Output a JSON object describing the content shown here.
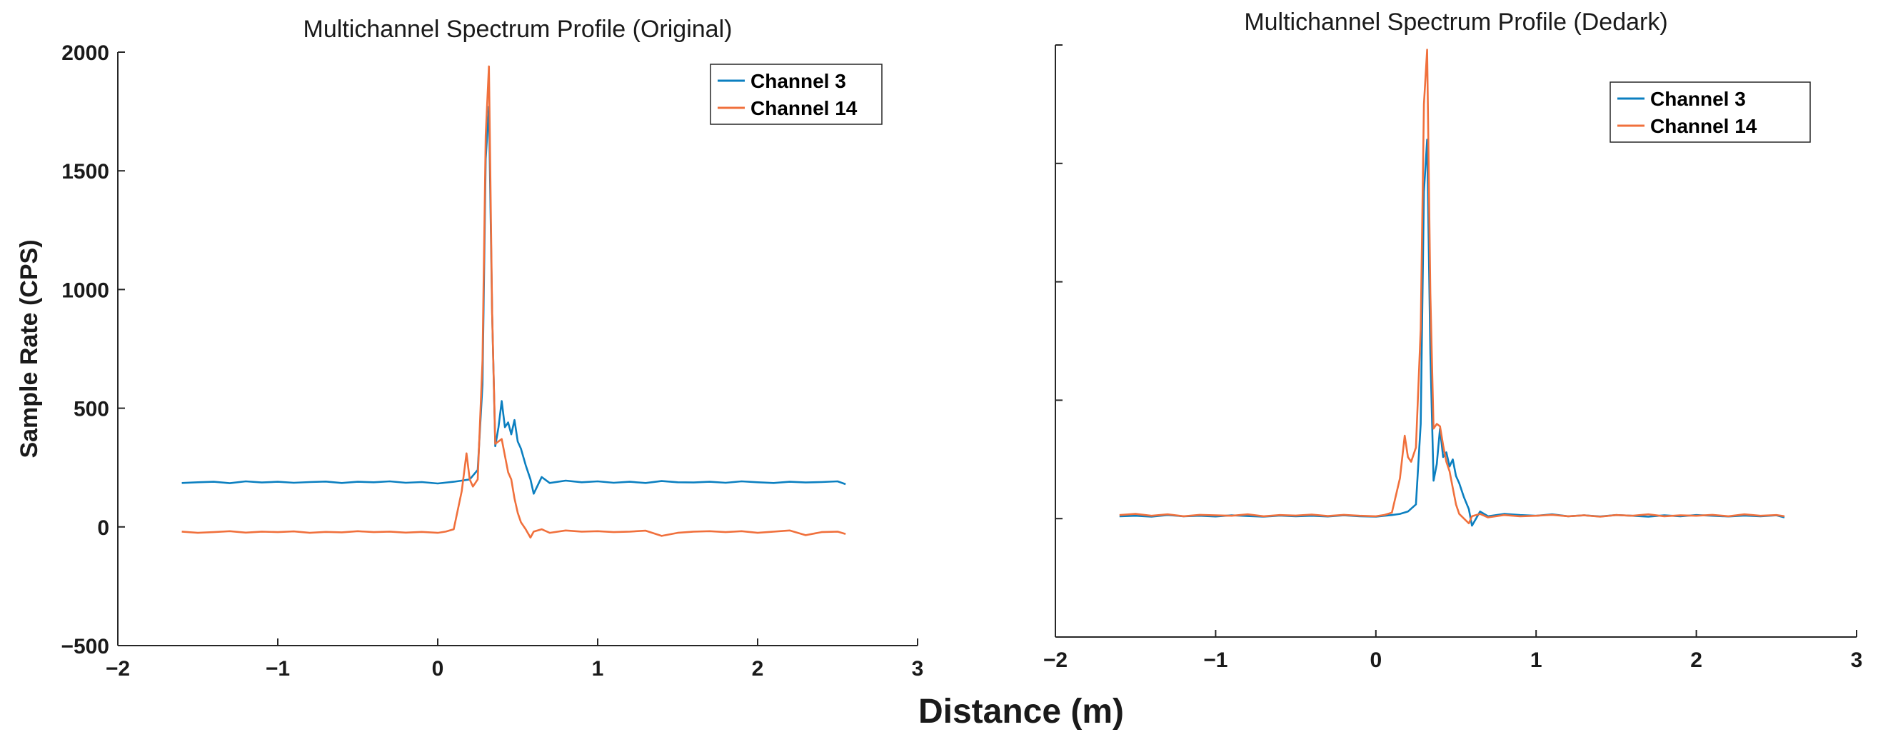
{
  "colors": {
    "ch3": "#0b7fc0",
    "ch14": "#f0703c"
  },
  "shared_xlabel": "Distance (m)",
  "chart_data": [
    {
      "type": "line",
      "title": "Multichannel Spectrum Profile (Original)",
      "xlabel": "",
      "ylabel": "Sample Rate (CPS)",
      "xlim": [
        -2,
        3
      ],
      "ylim": [
        -500,
        2000
      ],
      "x_ticks": [
        -2,
        -1,
        0,
        1,
        2,
        3
      ],
      "x_tick_labels": [
        "−2",
        "−1",
        "0",
        "1",
        "2",
        "3"
      ],
      "y_ticks": [
        -500,
        0,
        500,
        1000,
        1500,
        2000
      ],
      "y_tick_labels": [
        "−500",
        "0",
        "500",
        "1000",
        "1500",
        "2000"
      ],
      "legend": {
        "position": "top-right",
        "boxed": true
      },
      "series": [
        {
          "name": "Channel 3",
          "color_key": "ch3",
          "x": [
            -1.6,
            -1.5,
            -1.4,
            -1.3,
            -1.2,
            -1.1,
            -1.0,
            -0.9,
            -0.8,
            -0.7,
            -0.6,
            -0.5,
            -0.4,
            -0.3,
            -0.2,
            -0.1,
            0.0,
            0.1,
            0.15,
            0.2,
            0.25,
            0.28,
            0.3,
            0.32,
            0.34,
            0.36,
            0.38,
            0.4,
            0.42,
            0.44,
            0.46,
            0.48,
            0.5,
            0.52,
            0.55,
            0.58,
            0.6,
            0.65,
            0.7,
            0.8,
            0.9,
            1.0,
            1.1,
            1.2,
            1.3,
            1.4,
            1.5,
            1.6,
            1.7,
            1.8,
            1.9,
            2.0,
            2.1,
            2.2,
            2.3,
            2.4,
            2.5,
            2.55
          ],
          "y": [
            185,
            188,
            190,
            184,
            192,
            187,
            190,
            186,
            189,
            191,
            185,
            190,
            188,
            192,
            186,
            189,
            183,
            190,
            195,
            200,
            240,
            600,
            1550,
            1770,
            900,
            340,
            420,
            530,
            420,
            440,
            390,
            450,
            360,
            330,
            260,
            200,
            140,
            210,
            185,
            195,
            188,
            192,
            186,
            190,
            185,
            193,
            188,
            187,
            190,
            186,
            192,
            188,
            185,
            190,
            187,
            189,
            192,
            180
          ]
        },
        {
          "name": "Channel 14",
          "color_key": "ch14",
          "x": [
            -1.6,
            -1.5,
            -1.4,
            -1.3,
            -1.2,
            -1.1,
            -1.0,
            -0.9,
            -0.8,
            -0.7,
            -0.6,
            -0.5,
            -0.4,
            -0.3,
            -0.2,
            -0.1,
            0.0,
            0.05,
            0.1,
            0.15,
            0.18,
            0.2,
            0.22,
            0.25,
            0.28,
            0.3,
            0.32,
            0.34,
            0.36,
            0.38,
            0.4,
            0.42,
            0.44,
            0.46,
            0.48,
            0.5,
            0.52,
            0.55,
            0.58,
            0.6,
            0.65,
            0.7,
            0.8,
            0.9,
            1.0,
            1.1,
            1.2,
            1.3,
            1.4,
            1.5,
            1.6,
            1.7,
            1.8,
            1.9,
            2.0,
            2.1,
            2.2,
            2.3,
            2.4,
            2.5,
            2.55
          ],
          "y": [
            -20,
            -25,
            -22,
            -18,
            -24,
            -20,
            -22,
            -19,
            -25,
            -21,
            -23,
            -18,
            -22,
            -20,
            -24,
            -21,
            -25,
            -20,
            -10,
            150,
            310,
            200,
            170,
            200,
            700,
            1650,
            1940,
            900,
            350,
            360,
            370,
            300,
            230,
            200,
            120,
            60,
            20,
            -10,
            -45,
            -20,
            -10,
            -25,
            -15,
            -20,
            -18,
            -22,
            -20,
            -16,
            -38,
            -25,
            -20,
            -18,
            -22,
            -18,
            -25,
            -20,
            -15,
            -35,
            -22,
            -20,
            -30
          ]
        }
      ]
    },
    {
      "type": "line",
      "title": "Multichannel Spectrum Profile (Dedark)",
      "xlabel": "",
      "ylabel": "",
      "xlim": [
        -2,
        3
      ],
      "ylim": [
        -500,
        2000
      ],
      "x_ticks": [
        -2,
        -1,
        0,
        1,
        2,
        3
      ],
      "x_tick_labels": [
        "−2",
        "−1",
        "0",
        "1",
        "2",
        "3"
      ],
      "y_ticks": [
        -500,
        0,
        500,
        1000,
        1500,
        2000
      ],
      "y_tick_labels": [],
      "legend": {
        "position": "top-right",
        "boxed": true
      },
      "series": [
        {
          "name": "Channel 3",
          "color_key": "ch3",
          "x": [
            -1.6,
            -1.5,
            -1.4,
            -1.3,
            -1.2,
            -1.1,
            -1.0,
            -0.9,
            -0.8,
            -0.7,
            -0.6,
            -0.5,
            -0.4,
            -0.3,
            -0.2,
            -0.1,
            0.0,
            0.1,
            0.15,
            0.2,
            0.25,
            0.28,
            0.3,
            0.32,
            0.34,
            0.36,
            0.38,
            0.4,
            0.42,
            0.44,
            0.46,
            0.48,
            0.5,
            0.52,
            0.55,
            0.58,
            0.6,
            0.65,
            0.7,
            0.8,
            0.9,
            1.0,
            1.1,
            1.2,
            1.3,
            1.4,
            1.5,
            1.6,
            1.7,
            1.8,
            1.9,
            2.0,
            2.1,
            2.2,
            2.3,
            2.4,
            2.5,
            2.55
          ],
          "y": [
            10,
            12,
            8,
            15,
            10,
            12,
            9,
            14,
            11,
            8,
            13,
            10,
            12,
            9,
            14,
            10,
            8,
            15,
            20,
            30,
            60,
            400,
            1380,
            1600,
            700,
            160,
            230,
            380,
            260,
            280,
            220,
            250,
            180,
            150,
            90,
            40,
            -30,
            30,
            10,
            20,
            15,
            12,
            18,
            10,
            14,
            9,
            15,
            12,
            8,
            14,
            10,
            15,
            12,
            9,
            13,
            10,
            14,
            5
          ]
        },
        {
          "name": "Channel 14",
          "color_key": "ch14",
          "x": [
            -1.6,
            -1.5,
            -1.4,
            -1.3,
            -1.2,
            -1.1,
            -1.0,
            -0.9,
            -0.8,
            -0.7,
            -0.6,
            -0.5,
            -0.4,
            -0.3,
            -0.2,
            -0.1,
            0.0,
            0.05,
            0.1,
            0.15,
            0.18,
            0.2,
            0.22,
            0.25,
            0.28,
            0.3,
            0.32,
            0.34,
            0.36,
            0.38,
            0.4,
            0.42,
            0.44,
            0.46,
            0.48,
            0.5,
            0.52,
            0.55,
            0.58,
            0.6,
            0.65,
            0.7,
            0.8,
            0.9,
            1.0,
            1.1,
            1.2,
            1.3,
            1.4,
            1.5,
            1.6,
            1.7,
            1.8,
            1.9,
            2.0,
            2.1,
            2.2,
            2.3,
            2.4,
            2.5,
            2.55
          ],
          "y": [
            15,
            20,
            12,
            18,
            10,
            16,
            14,
            12,
            18,
            10,
            15,
            13,
            17,
            11,
            16,
            12,
            10,
            15,
            25,
            170,
            350,
            260,
            240,
            300,
            800,
            1750,
            1980,
            950,
            380,
            400,
            390,
            310,
            240,
            200,
            130,
            60,
            20,
            0,
            -20,
            10,
            20,
            5,
            15,
            10,
            12,
            16,
            10,
            14,
            8,
            15,
            12,
            18,
            10,
            14,
            12,
            16,
            10,
            18,
            12,
            15,
            10
          ]
        }
      ]
    }
  ]
}
